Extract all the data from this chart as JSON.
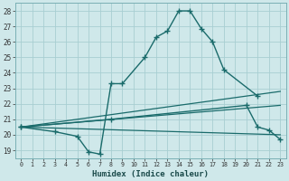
{
  "xlabel": "Humidex (Indice chaleur)",
  "xlim": [
    -0.5,
    23.5
  ],
  "ylim": [
    18.5,
    28.5
  ],
  "yticks": [
    19,
    20,
    21,
    22,
    23,
    24,
    25,
    26,
    27,
    28
  ],
  "xticks": [
    0,
    1,
    2,
    3,
    4,
    5,
    6,
    7,
    8,
    9,
    10,
    11,
    12,
    13,
    14,
    15,
    16,
    17,
    18,
    19,
    20,
    21,
    22,
    23
  ],
  "bg_color": "#cfe8ea",
  "grid_color": "#a8ced2",
  "line_color": "#1a6b6b",
  "curve1_x": [
    0,
    3,
    5,
    6,
    7,
    8,
    9,
    11,
    12,
    13,
    14,
    15,
    16,
    17,
    18,
    21
  ],
  "curve1_y": [
    20.5,
    20.2,
    19.9,
    18.9,
    18.75,
    23.3,
    23.3,
    25.0,
    26.3,
    26.7,
    28.0,
    28.0,
    26.85,
    26.0,
    24.2,
    22.5
  ],
  "curve2_x": [
    0,
    8,
    20,
    21,
    22,
    23
  ],
  "curve2_y": [
    20.5,
    21.0,
    21.9,
    20.5,
    20.3,
    19.7
  ],
  "line1": [
    [
      0,
      20.5
    ],
    [
      23,
      22.8
    ]
  ],
  "line2": [
    [
      0,
      20.5
    ],
    [
      23,
      21.9
    ]
  ],
  "line3": [
    [
      0,
      20.5
    ],
    [
      23,
      20.0
    ]
  ]
}
